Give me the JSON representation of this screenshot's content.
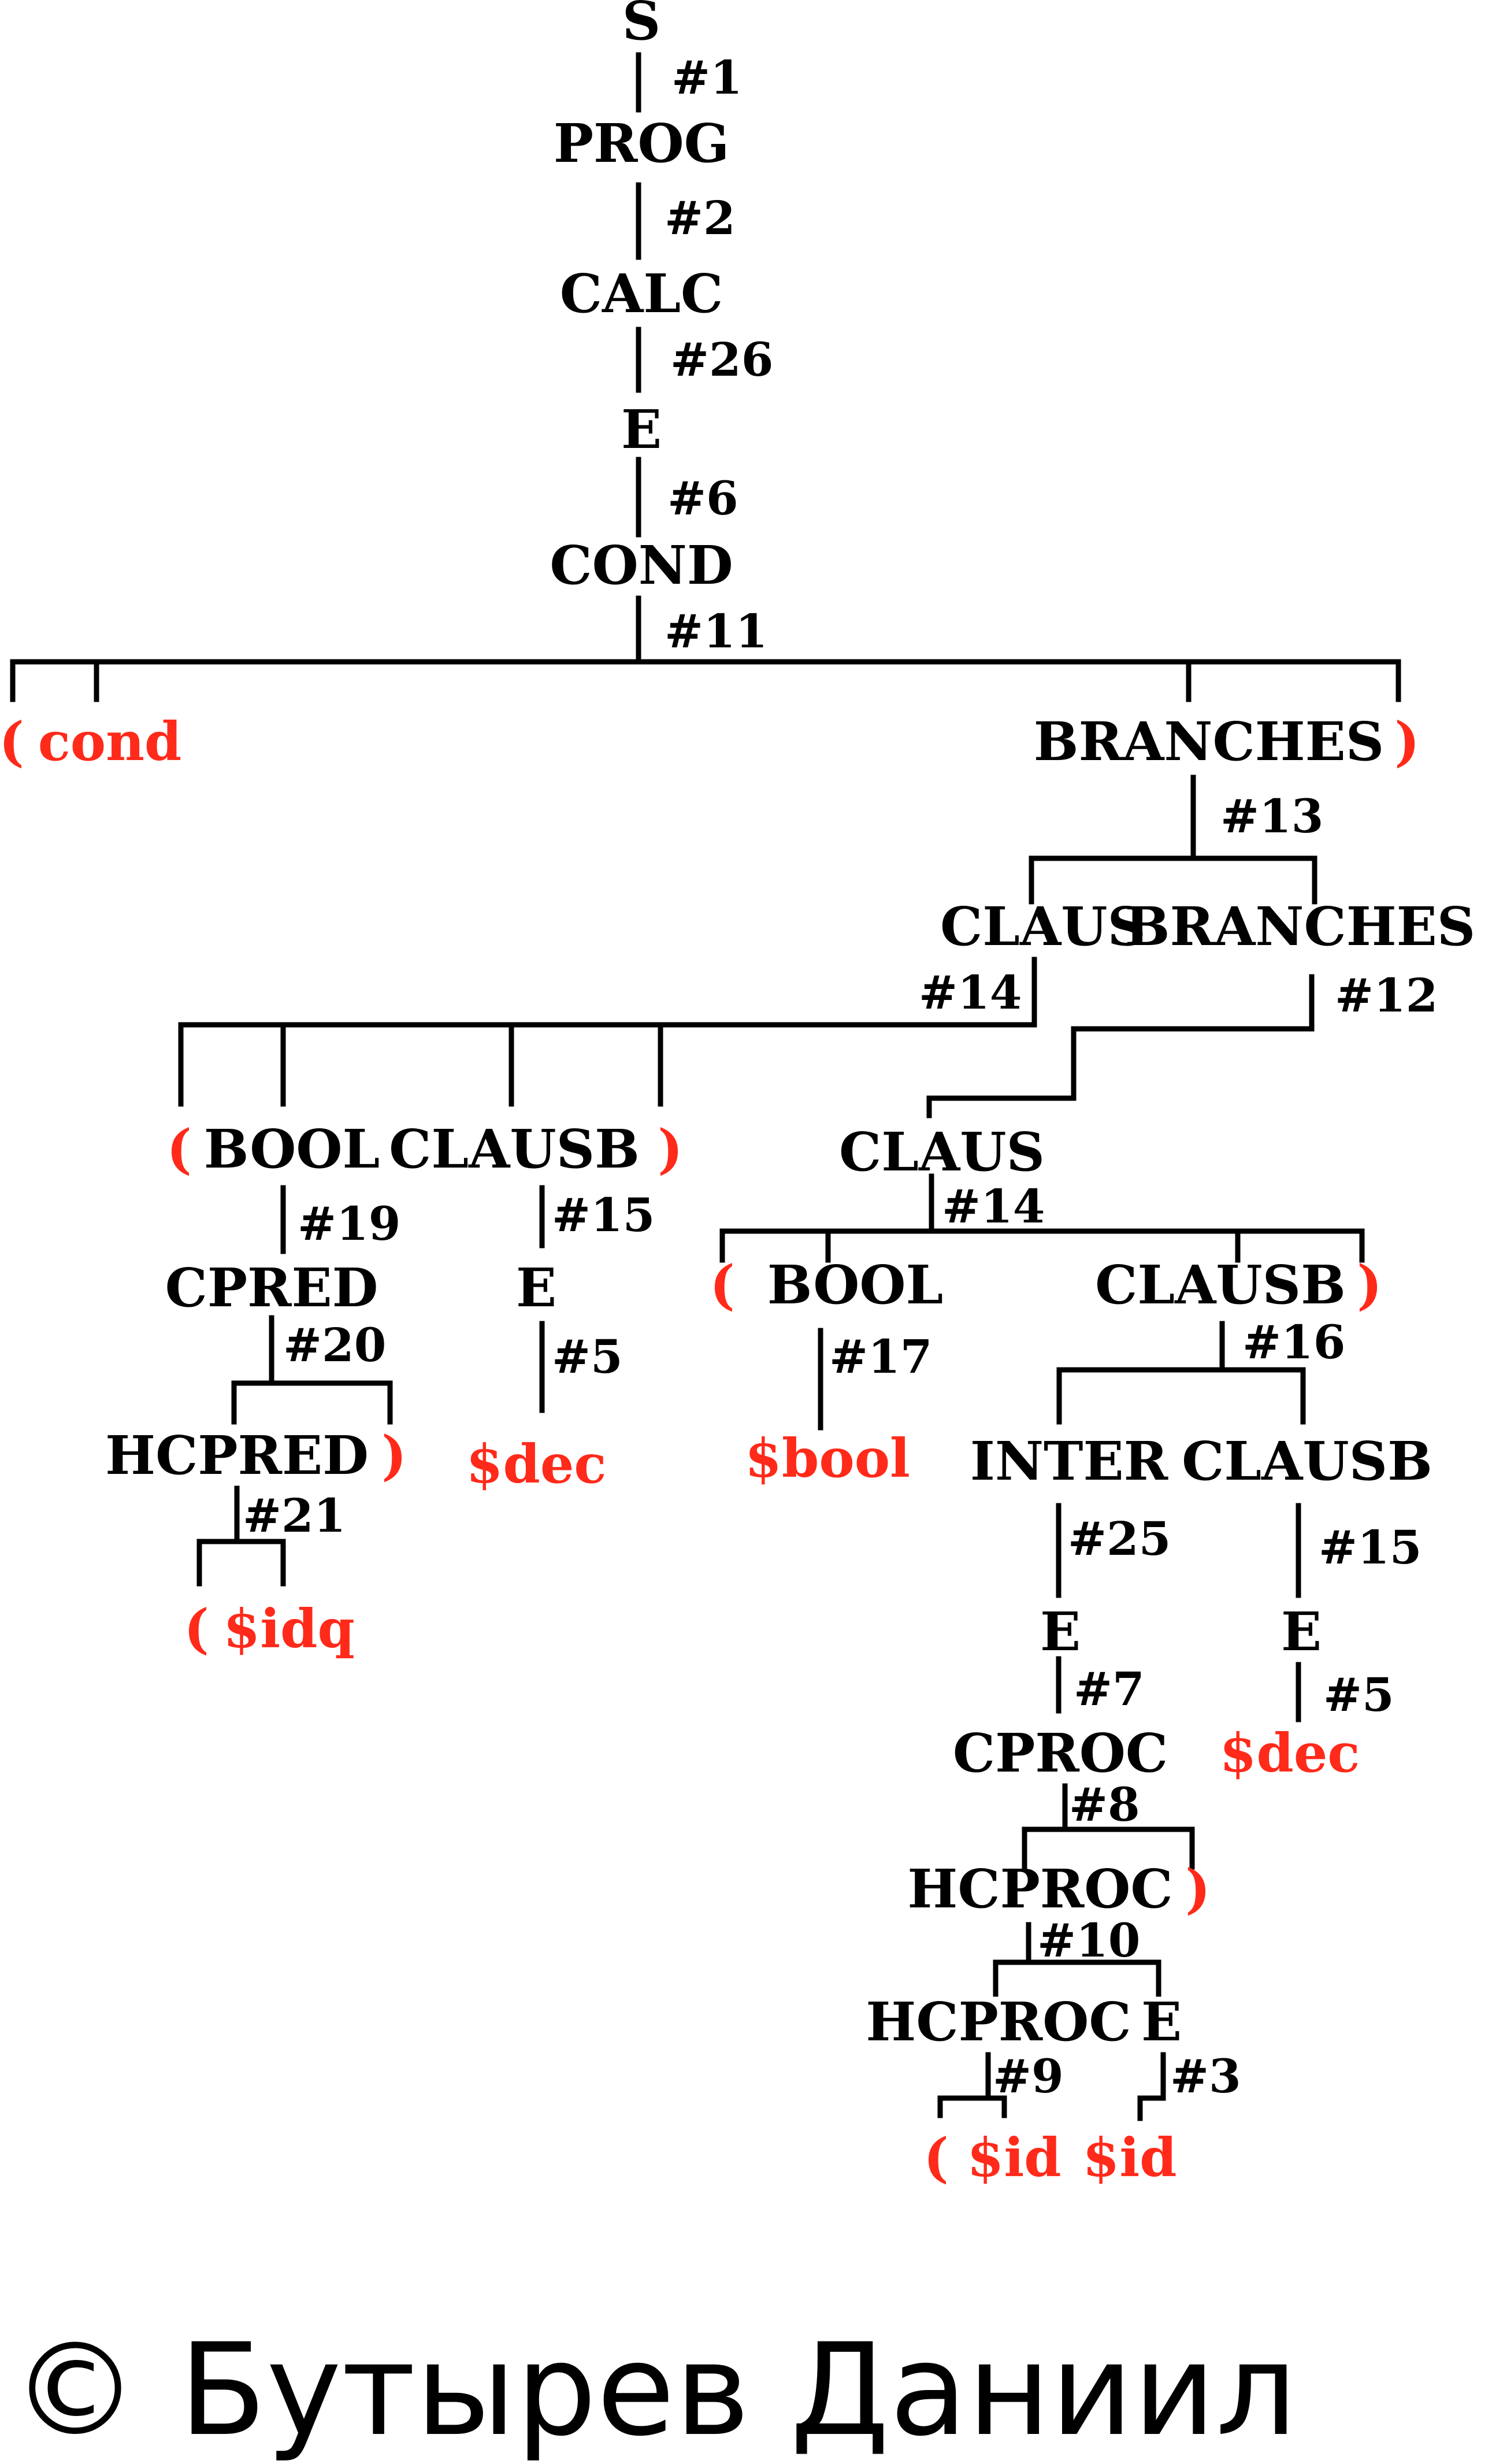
{
  "colors": {
    "nonterminal": "#000000",
    "terminal": "#ff2a1a",
    "rule_number": "#000000",
    "edge": "#000000"
  },
  "nonterminals": {
    "s": "S",
    "prog": "PROG",
    "calc": "CALC",
    "e_top": "E",
    "cond": "COND",
    "branches_1": "BRANCHES",
    "claus_1": "CLAUS",
    "branches_2": "BRANCHES",
    "bool_1": "BOOL",
    "clausb_1": "CLAUSB",
    "cpred": "CPRED",
    "e_2": "E",
    "hcpred": "HCPRED",
    "claus_2": "CLAUS",
    "bool_2": "BOOL",
    "clausb_2": "CLAUSB",
    "inter": "INTER",
    "clausb_3": "CLAUSB",
    "e_3": "E",
    "e_4": "E",
    "cproc": "CPROC",
    "hcproc_1": "HCPROC",
    "hcproc_2": "HCPROC",
    "e_5": "E"
  },
  "terminals": {
    "lp_cond": "(",
    "cond_kw": "cond",
    "rp_branches": ")",
    "lp_bool_1": "(",
    "rp_clausb_1": ")",
    "rp_hcpred": ")",
    "dec_1": "$dec",
    "lp_idq": "(",
    "idq": "$idq",
    "lp_bool_2": "(",
    "rp_clausb_2": ")",
    "bool_val": "$bool",
    "dec_2": "$dec",
    "rp_hcproc": ")",
    "lp_id": "(",
    "id_1": "$id",
    "id_2": "$id"
  },
  "rules": {
    "r1": "#1",
    "r2": "#2",
    "r26": "#26",
    "r6": "#6",
    "r11": "#11",
    "r13": "#13",
    "r14a": "#14",
    "r12": "#12",
    "r19": "#19",
    "r15a": "#15",
    "r20": "#20",
    "r5a": "#5",
    "r21": "#21",
    "r14b": "#14",
    "r17": "#17",
    "r16": "#16",
    "r25": "#25",
    "r15b": "#15",
    "r7": "#7",
    "r5b": "#5",
    "r8": "#8",
    "r10": "#10",
    "r9": "#9",
    "r3": "#3"
  },
  "copyright": "© Бутырев Даниил"
}
